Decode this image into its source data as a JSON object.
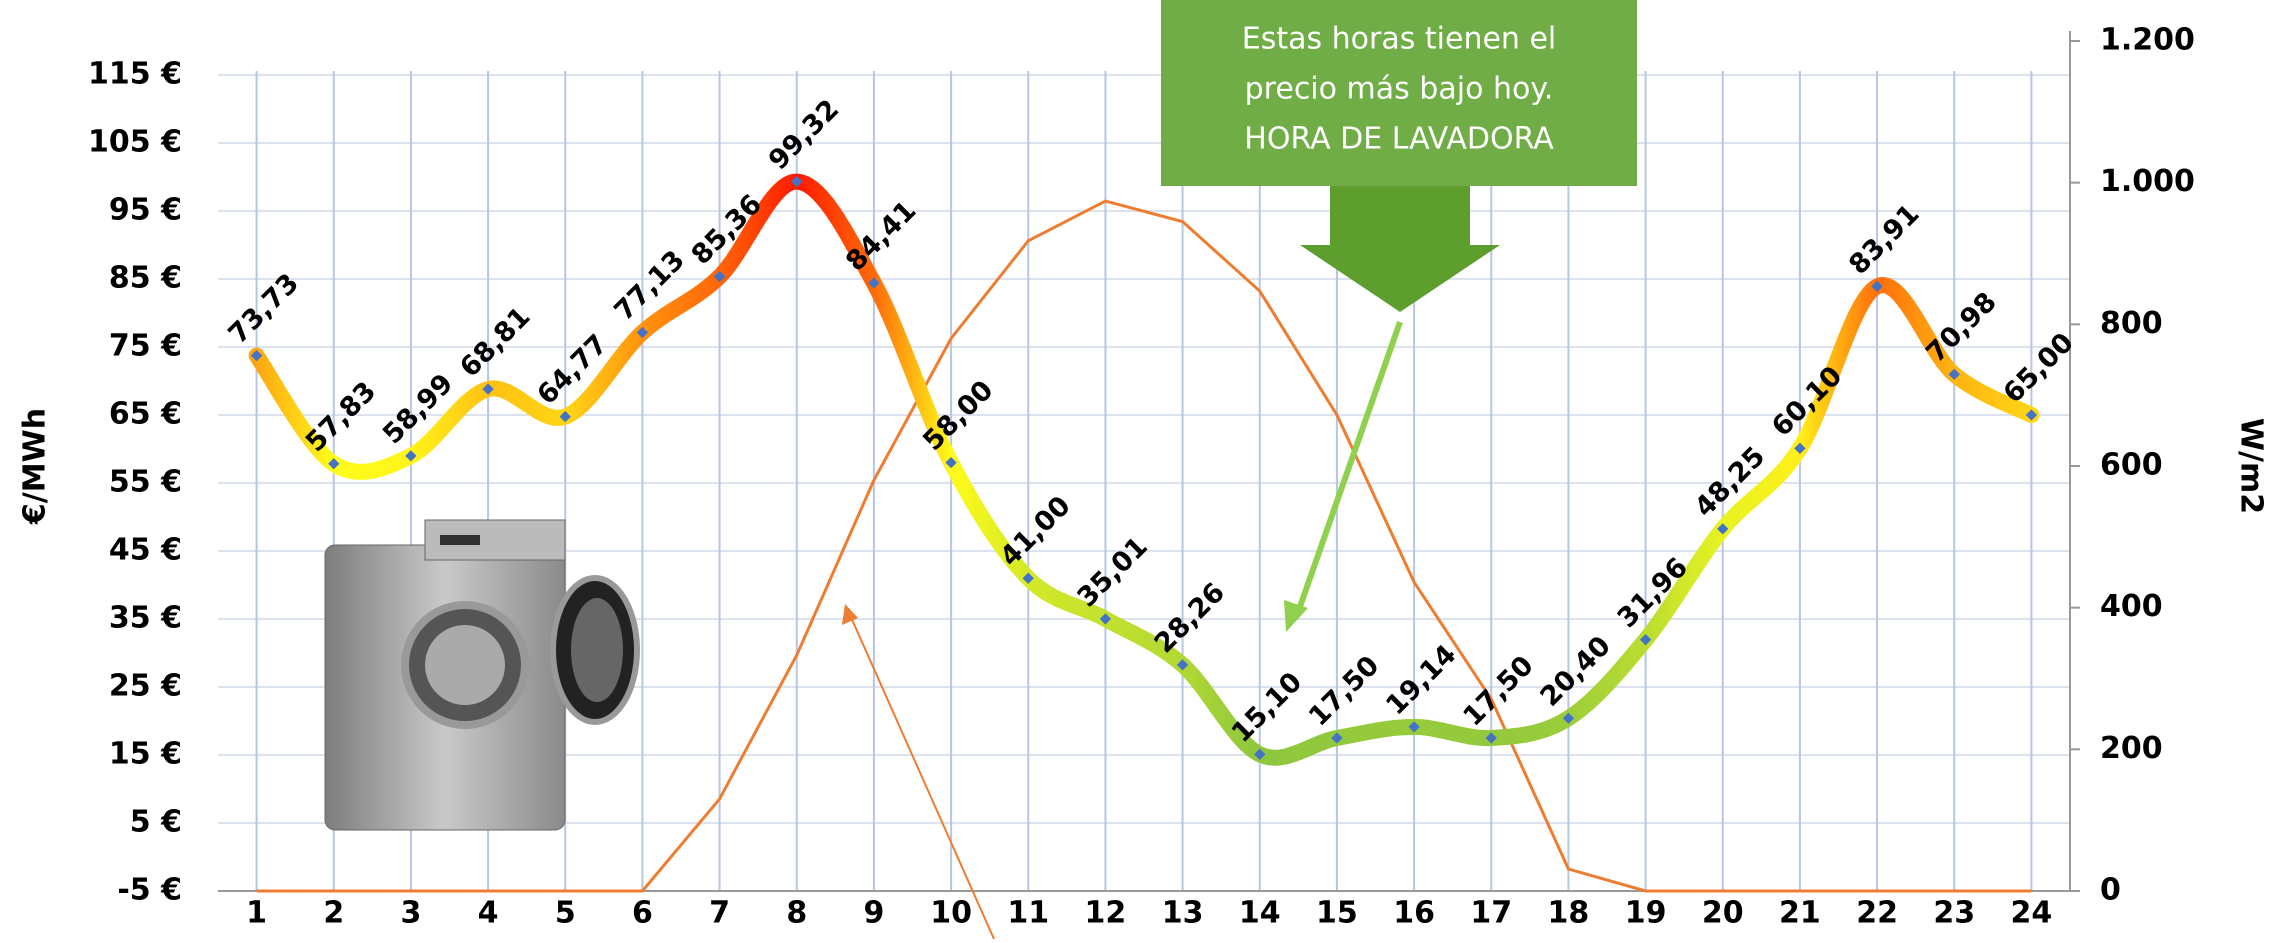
{
  "chart_data": {
    "type": "line",
    "x": [
      1,
      2,
      3,
      4,
      5,
      6,
      7,
      8,
      9,
      10,
      11,
      12,
      13,
      14,
      15,
      16,
      17,
      18,
      19,
      20,
      21,
      22,
      23,
      24
    ],
    "xlim": [
      0.5,
      24.5
    ],
    "xticks": [
      1,
      2,
      3,
      4,
      5,
      6,
      7,
      8,
      9,
      10,
      11,
      12,
      13,
      14,
      15,
      16,
      17,
      18,
      19,
      20,
      21,
      22,
      23,
      24
    ],
    "ylim": [
      -5,
      120
    ],
    "yticks": [
      {
        "value": -5,
        "label": "-5 €"
      },
      {
        "value": 5,
        "label": "5 €"
      },
      {
        "value": 15,
        "label": "15 €"
      },
      {
        "value": 25,
        "label": "25 €"
      },
      {
        "value": 35,
        "label": "35 €"
      },
      {
        "value": 45,
        "label": "45 €"
      },
      {
        "value": 55,
        "label": "55 €"
      },
      {
        "value": 65,
        "label": "65 €"
      },
      {
        "value": 75,
        "label": "75 €"
      },
      {
        "value": 85,
        "label": "85 €"
      },
      {
        "value": 95,
        "label": "95 €"
      },
      {
        "value": 105,
        "label": "105 €"
      },
      {
        "value": 115,
        "label": "115 €"
      }
    ],
    "y2lim": [
      0,
      1200
    ],
    "y2ticks": [
      0,
      200,
      400,
      600,
      800,
      {
        "value": 1000,
        "label": "1.000"
      },
      {
        "value": 1200,
        "label": "1.200"
      }
    ],
    "ylabel": "€/MWh",
    "y2label": "W/m2",
    "grid": true,
    "series": [
      {
        "color_scale": [
          "#8dc63f",
          "#ffff1a",
          "#ff1a00"
        ],
        "marker_color": "#4472c4",
        "values": [
          73.73,
          57.83,
          58.99,
          68.81,
          64.77,
          77.13,
          85.36,
          99.32,
          84.41,
          58,
          41,
          35.01,
          28.26,
          15.1,
          17.5,
          19.14,
          17.5,
          20.4,
          31.96,
          48.25,
          60.1,
          83.91,
          70.98,
          65
        ],
        "value_labels": [
          "73,73",
          "57,83",
          "58,99",
          "68,81",
          "64,77",
          "77,13",
          "85,36",
          "99,32",
          "84,41",
          "58,00",
          "41,00",
          "35,01",
          "28,26",
          "15,10",
          "17,50",
          "19,14",
          "17,50",
          "20,40",
          "31,96",
          "48,25",
          "60,10",
          "83,91",
          "70,98",
          "65,00"
        ]
      },
      {
        "color": "#ed7d31",
        "axis": "y2",
        "values": [
          0,
          0,
          0,
          0,
          0,
          0,
          130,
          333,
          580,
          780,
          918,
          974,
          945,
          847,
          672,
          436,
          271,
          31,
          0,
          0,
          0,
          0,
          0,
          0
        ]
      }
    ],
    "annotation": [
      "Estas horas tienen el",
      "precio más bajo hoy.",
      "HORA DE LAVADORA"
    ]
  }
}
